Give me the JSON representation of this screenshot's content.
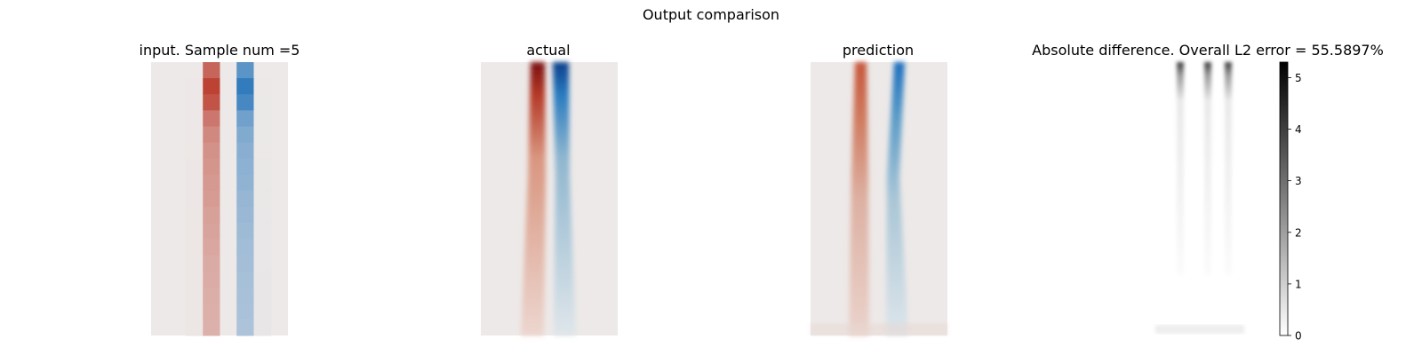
{
  "figure": {
    "title": "Output comparison"
  },
  "panels": {
    "input": {
      "title": "input. Sample num =5"
    },
    "actual": {
      "title": "actual"
    },
    "prediction": {
      "title": "prediction"
    },
    "difference": {
      "title": "Absolute difference. Overall L2 error = 55.5897%"
    }
  },
  "colors": {
    "background_field": "#ede9e8",
    "positive": "#b93a2a",
    "negative": "#1d6fb8",
    "difference_max": "#000000",
    "difference_min": "#ffffff"
  },
  "chart_data": [
    {
      "type": "heatmap",
      "title": "input. Sample num =5",
      "description_values": {
        "columns": 8,
        "rows": 17,
        "positive_column": 3,
        "negative_column": 5,
        "positive_profile": [
          0.75,
          0.95,
          0.85,
          0.65,
          0.55,
          0.5,
          0.48,
          0.46,
          0.44,
          0.42,
          0.4,
          0.38,
          0.36,
          0.35,
          0.34,
          0.33,
          0.32
        ],
        "negative_profile": [
          0.7,
          0.9,
          0.8,
          0.6,
          0.52,
          0.48,
          0.46,
          0.44,
          0.42,
          0.4,
          0.38,
          0.36,
          0.35,
          0.34,
          0.33,
          0.32,
          0.31
        ]
      }
    },
    {
      "type": "heatmap",
      "title": "actual"
    },
    {
      "type": "heatmap",
      "title": "prediction"
    },
    {
      "type": "heatmap",
      "title": "Absolute difference. Overall L2 error = 55.5897%",
      "colorbar": {
        "range": [
          0,
          5.3
        ],
        "ticks": [
          "0",
          "1",
          "2",
          "3",
          "4",
          "5"
        ]
      }
    }
  ]
}
